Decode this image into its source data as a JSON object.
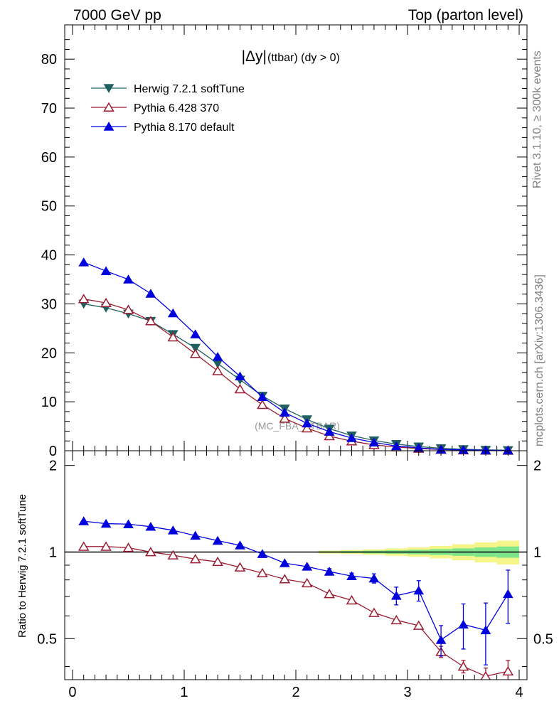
{
  "header": {
    "left": "7000 GeV pp",
    "right": "Top (parton level)"
  },
  "side_labels": {
    "rivet": "Rivet 3.1.10, ≥ 300k events",
    "mcplots": "mcplots.cern.ch [arXiv:1306.3436]"
  },
  "chart_data": [
    {
      "type": "line",
      "title_main": "|Δy|",
      "title_sub": "(ttbar) (dy > 0)",
      "watermark": "(MC_FBA_TTBAR)",
      "xlabel": "",
      "ylabel": "",
      "xlim": [
        -0.07,
        4.07
      ],
      "ylim": [
        0,
        87
      ],
      "xticks": [
        "0",
        "1",
        "2",
        "3",
        "4"
      ],
      "yticks": [
        "0",
        "10",
        "20",
        "30",
        "40",
        "50",
        "60",
        "70",
        "80"
      ],
      "x": [
        0.1,
        0.3,
        0.5,
        0.7,
        0.9,
        1.1,
        1.3,
        1.5,
        1.7,
        1.9,
        2.1,
        2.3,
        2.5,
        2.7,
        2.9,
        3.1,
        3.3,
        3.5,
        3.7,
        3.9
      ],
      "series": [
        {
          "name": "Herwig 7.2.1 softTune",
          "color": "#1f5f5f",
          "marker": "triangle-down-filled",
          "values": [
            30.0,
            29.2,
            28.0,
            26.5,
            23.8,
            21.0,
            17.8,
            14.5,
            11.2,
            8.6,
            6.4,
            4.5,
            3.1,
            2.1,
            1.35,
            0.85,
            0.5,
            0.3,
            0.17,
            0.1
          ]
        },
        {
          "name": "Pythia 6.428 370",
          "color": "#9b1b30",
          "marker": "triangle-up-open",
          "values": [
            31.0,
            30.2,
            28.8,
            26.5,
            23.2,
            19.8,
            16.3,
            12.6,
            9.4,
            6.6,
            4.6,
            3.0,
            1.95,
            1.2,
            0.75,
            0.45,
            0.24,
            0.12,
            0.06,
            0.04
          ]
        },
        {
          "name": "Pythia 8.170 default",
          "color": "#0000dd",
          "marker": "triangle-up-filled",
          "values": [
            38.5,
            36.7,
            35.0,
            32.1,
            28.1,
            23.8,
            19.2,
            15.2,
            11.0,
            7.8,
            5.6,
            3.9,
            2.6,
            1.7,
            0.95,
            0.6,
            0.25,
            0.17,
            0.09,
            0.07
          ]
        }
      ]
    },
    {
      "type": "line",
      "ylabel": "Ratio to Herwig 7.2.1 softTune",
      "xlim": [
        -0.07,
        4.07
      ],
      "ylim": [
        0.36,
        2.25
      ],
      "yscale": "log",
      "xticks": [
        "0",
        "1",
        "2",
        "3",
        "4"
      ],
      "yticks_left": [
        "0.5",
        "1",
        "2"
      ],
      "yticks_right": [
        "0.5",
        "1",
        "2"
      ],
      "reference_line": 1.0,
      "x": [
        0.1,
        0.3,
        0.5,
        0.7,
        0.9,
        1.1,
        1.3,
        1.5,
        1.7,
        1.9,
        2.1,
        2.3,
        2.5,
        2.7,
        2.9,
        3.1,
        3.3,
        3.5,
        3.7,
        3.9
      ],
      "band_x": [
        2.3,
        2.5,
        2.7,
        2.9,
        3.1,
        3.3,
        3.5,
        3.7,
        3.9
      ],
      "band_inner": [
        0.006,
        0.008,
        0.011,
        0.014,
        0.018,
        0.024,
        0.03,
        0.038,
        0.045
      ],
      "band_outer": [
        0.012,
        0.016,
        0.022,
        0.03,
        0.038,
        0.05,
        0.064,
        0.08,
        0.095
      ],
      "series": [
        {
          "name": "Pythia 6.428 370",
          "color": "#9b1b30",
          "marker": "triangle-up-open",
          "values": [
            1.045,
            1.045,
            1.035,
            1.0,
            0.975,
            0.945,
            0.925,
            0.885,
            0.845,
            0.805,
            0.78,
            0.715,
            0.68,
            0.615,
            0.58,
            0.555,
            0.45,
            0.4,
            0.37,
            0.385
          ],
          "errors": [
            0,
            0,
            0,
            0,
            0,
            0,
            0,
            0,
            0,
            0,
            0,
            0,
            0,
            0,
            0,
            0,
            0.02,
            0.02,
            0.025,
            0.035
          ]
        },
        {
          "name": "Pythia 8.170 default",
          "color": "#0000dd",
          "marker": "triangle-up-filled",
          "values": [
            1.28,
            1.255,
            1.25,
            1.225,
            1.19,
            1.14,
            1.095,
            1.055,
            0.985,
            0.915,
            0.89,
            0.855,
            0.825,
            0.81,
            0.705,
            0.735,
            0.495,
            0.56,
            0.535,
            0.715
          ],
          "errors": [
            0,
            0,
            0,
            0,
            0,
            0,
            0,
            0.01,
            0.01,
            0.01,
            0.01,
            0.02,
            0.02,
            0.03,
            0.05,
            0.06,
            0.06,
            0.1,
            0.13,
            0.15
          ]
        }
      ]
    }
  ]
}
